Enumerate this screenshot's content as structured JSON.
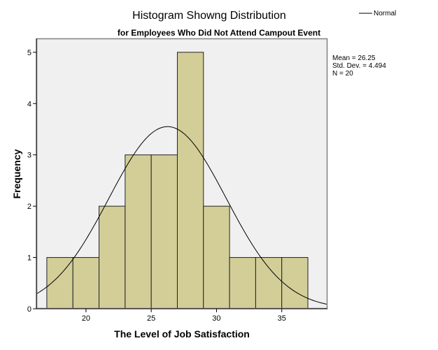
{
  "chart_data": {
    "type": "bar",
    "title": "Histogram Showng Distribution",
    "subtitle": "for Employees Who Did Not Attend Campout Event",
    "xlabel": "The Level of Job Satisfaction",
    "ylabel": "Frequency",
    "xlim": [
      16.2,
      38.5
    ],
    "ylim": [
      0,
      5.27
    ],
    "x_ticks": [
      20,
      25,
      30,
      35
    ],
    "y_ticks": [
      0,
      1,
      2,
      3,
      4,
      5
    ],
    "bins": [
      {
        "start": 17,
        "end": 19,
        "count": 1
      },
      {
        "start": 19,
        "end": 21,
        "count": 1
      },
      {
        "start": 21,
        "end": 23,
        "count": 2
      },
      {
        "start": 23,
        "end": 25,
        "count": 3
      },
      {
        "start": 25,
        "end": 27,
        "count": 3
      },
      {
        "start": 27,
        "end": 29,
        "count": 5
      },
      {
        "start": 29,
        "end": 31,
        "count": 2
      },
      {
        "start": 31,
        "end": 33,
        "count": 1
      },
      {
        "start": 33,
        "end": 35,
        "count": 1
      },
      {
        "start": 35,
        "end": 37,
        "count": 1
      }
    ],
    "normal_curve": {
      "mean": 26.25,
      "std_dev": 4.494,
      "n": 20,
      "bin_width": 2
    },
    "legend": {
      "entries": [
        "Normal"
      ],
      "placement": "top-right"
    },
    "stats": {
      "mean_label": "Mean = 26.25",
      "std_label": "Std. Dev. = 4.494",
      "n_label": "N = 20"
    },
    "grid": false,
    "colors": {
      "bar_fill": "#d3ce98",
      "bar_stroke": "#222222",
      "plot_background": "#f0f0f0",
      "plot_border": "#808080",
      "curve": "#000000"
    }
  }
}
